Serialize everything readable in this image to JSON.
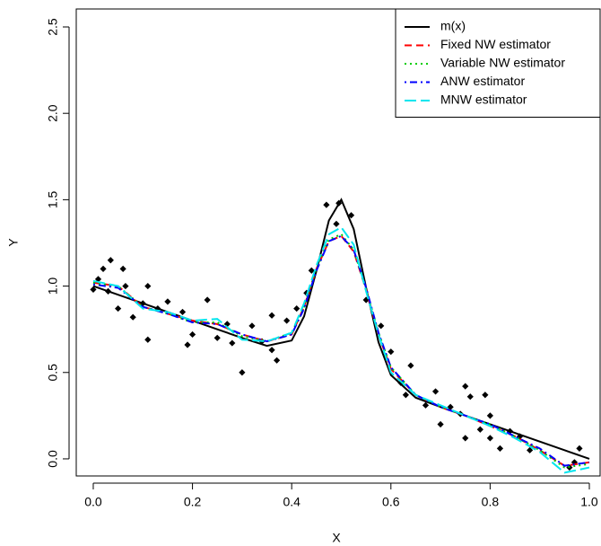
{
  "chart_data": {
    "type": "line",
    "x_label": "X",
    "y_label": "Y",
    "xlim": [
      -0.0343,
      1.0217
    ],
    "ylim": [
      -0.099,
      2.604
    ],
    "xticks": [
      {
        "value": 0,
        "label": "0.0"
      },
      {
        "value": 0.2,
        "label": "0.2"
      },
      {
        "value": 0.4,
        "label": "0.4"
      },
      {
        "value": 0.6,
        "label": "0.6"
      },
      {
        "value": 0.8,
        "label": "0.8"
      },
      {
        "value": 1,
        "label": "1.0"
      }
    ],
    "yticks": [
      {
        "value": 0,
        "label": "0.0"
      },
      {
        "value": 0.5,
        "label": "0.5"
      },
      {
        "value": 1,
        "label": "1.0"
      },
      {
        "value": 1.5,
        "label": "1.5"
      },
      {
        "value": 2,
        "label": "2.0"
      },
      {
        "value": 2.5,
        "label": "2.5"
      }
    ],
    "legend": "top-right",
    "x": [
      0,
      0.05,
      0.1,
      0.15,
      0.2,
      0.25,
      0.3,
      0.35,
      0.4,
      0.425,
      0.45,
      0.475,
      0.5,
      0.525,
      0.55,
      0.575,
      0.6,
      0.65,
      0.7,
      0.75,
      0.8,
      0.85,
      0.9,
      0.95,
      1
    ],
    "series": [
      {
        "name": "m(x)",
        "color": "#000000",
        "dash": "solid",
        "values": [
          1,
          0.95,
          0.9,
          0.85,
          0.8,
          0.75,
          0.7,
          0.654,
          0.685,
          0.825,
          1.09,
          1.38,
          1.5,
          1.33,
          0.99,
          0.675,
          0.485,
          0.354,
          0.3,
          0.25,
          0.2,
          0.15,
          0.1,
          0.05,
          0
        ]
      },
      {
        "name": "Fixed NW estimator",
        "color": "#ff0000",
        "dash": "dashed",
        "values": [
          1.02,
          1.0,
          0.88,
          0.84,
          0.8,
          0.78,
          0.72,
          0.68,
          0.72,
          0.88,
          1.1,
          1.26,
          1.29,
          1.2,
          0.98,
          0.72,
          0.52,
          0.37,
          0.3,
          0.25,
          0.19,
          0.13,
          0.05,
          -0.04,
          -0.02
        ]
      },
      {
        "name": "Variable NW estimator",
        "color": "#00cd00",
        "dash": "dotted",
        "values": [
          1.02,
          1.0,
          0.88,
          0.84,
          0.79,
          0.79,
          0.71,
          0.68,
          0.73,
          0.88,
          1.1,
          1.27,
          1.3,
          1.21,
          0.98,
          0.73,
          0.53,
          0.37,
          0.3,
          0.25,
          0.2,
          0.13,
          0.05,
          -0.05,
          -0.03
        ]
      },
      {
        "name": "ANW estimator",
        "color": "#0000ff",
        "dash": "dotdash",
        "values": [
          1.01,
          0.99,
          0.88,
          0.84,
          0.79,
          0.78,
          0.72,
          0.68,
          0.72,
          0.87,
          1.09,
          1.26,
          1.29,
          1.21,
          0.99,
          0.73,
          0.53,
          0.37,
          0.3,
          0.25,
          0.2,
          0.13,
          0.06,
          -0.04,
          -0.02
        ]
      },
      {
        "name": "MNW estimator",
        "color": "#00e5ee",
        "dash": "longdash",
        "values": [
          1.03,
          1.0,
          0.87,
          0.85,
          0.8,
          0.81,
          0.69,
          0.68,
          0.73,
          0.9,
          1.12,
          1.3,
          1.34,
          1.24,
          0.97,
          0.72,
          0.5,
          0.37,
          0.31,
          0.25,
          0.19,
          0.12,
          0.04,
          -0.08,
          -0.05
        ]
      }
    ],
    "points": {
      "color": "#000000",
      "x": [
        0.0,
        0.01,
        0.02,
        0.03,
        0.035,
        0.05,
        0.06,
        0.065,
        0.08,
        0.1,
        0.11,
        0.11,
        0.13,
        0.15,
        0.18,
        0.19,
        0.2,
        0.23,
        0.25,
        0.27,
        0.28,
        0.3,
        0.32,
        0.34,
        0.36,
        0.36,
        0.37,
        0.39,
        0.41,
        0.43,
        0.44,
        0.47,
        0.49,
        0.495,
        0.52,
        0.55,
        0.58,
        0.6,
        0.62,
        0.63,
        0.64,
        0.67,
        0.69,
        0.7,
        0.72,
        0.74,
        0.75,
        0.75,
        0.76,
        0.78,
        0.79,
        0.8,
        0.8,
        0.82,
        0.84,
        0.86,
        0.88,
        0.97,
        0.98,
        0.96
      ],
      "y": [
        0.98,
        1.04,
        1.1,
        0.97,
        1.15,
        0.87,
        1.1,
        1.0,
        0.82,
        0.9,
        0.69,
        1.0,
        0.87,
        0.91,
        0.85,
        0.66,
        0.72,
        0.92,
        0.7,
        0.78,
        0.67,
        0.5,
        0.77,
        0.68,
        0.63,
        0.83,
        0.57,
        0.8,
        0.87,
        0.96,
        1.09,
        1.47,
        1.36,
        1.48,
        1.41,
        0.92,
        0.77,
        0.62,
        0.44,
        0.37,
        0.54,
        0.31,
        0.39,
        0.2,
        0.3,
        0.26,
        0.42,
        0.12,
        0.36,
        0.17,
        0.37,
        0.25,
        0.12,
        0.06,
        0.16,
        0.13,
        0.05,
        -0.02,
        0.06,
        -0.05
      ]
    }
  }
}
